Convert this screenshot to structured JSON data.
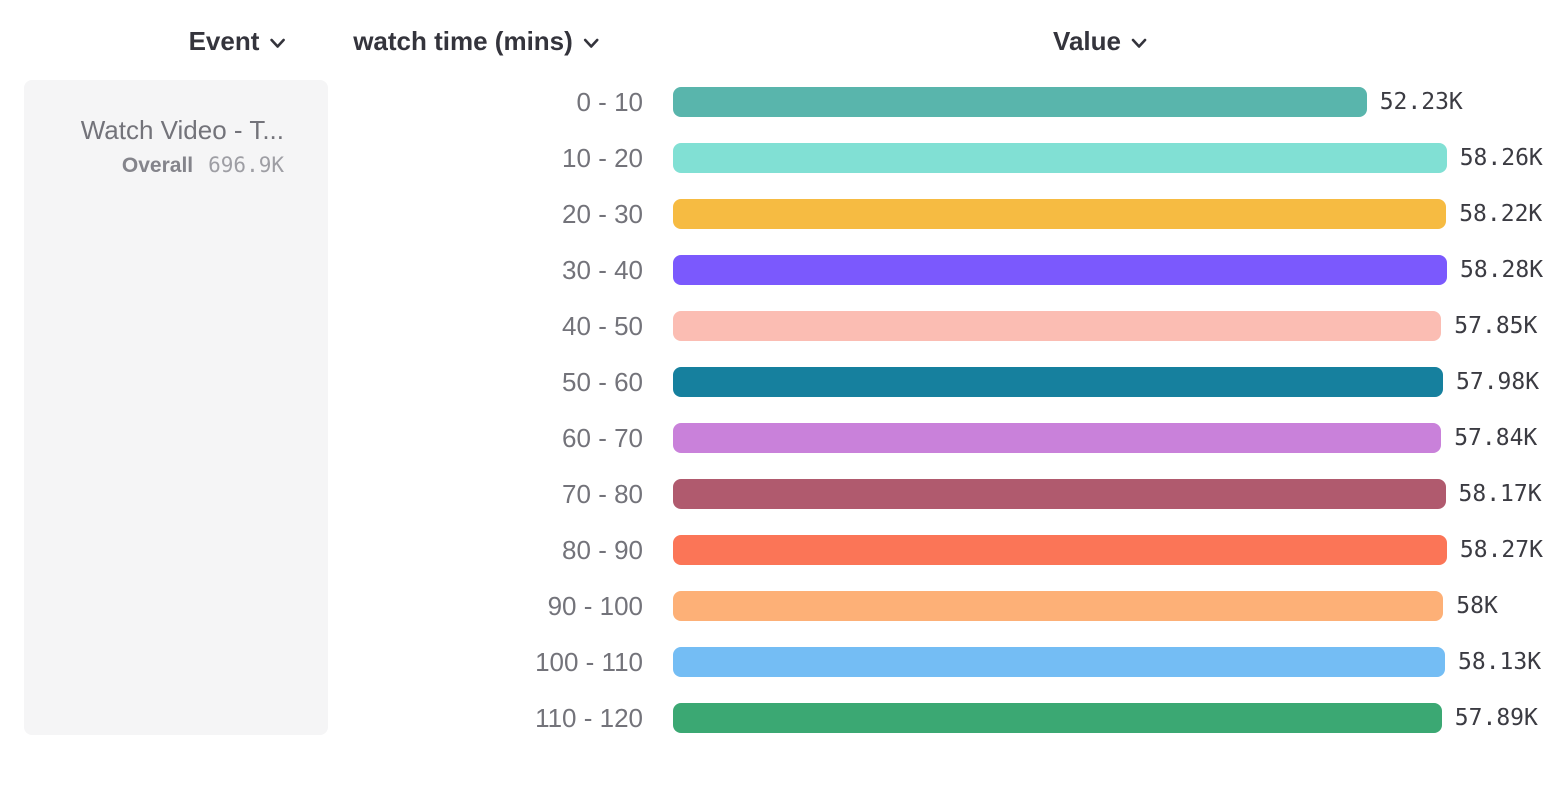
{
  "header": {
    "columns": [
      {
        "id": "event",
        "label": "Event"
      },
      {
        "id": "breakdown",
        "label": "watch time (mins)"
      },
      {
        "id": "value",
        "label": "Value"
      }
    ]
  },
  "event_card": {
    "title": "Watch Video - T...",
    "overall_label": "Overall",
    "overall_value": "696.9K"
  },
  "icons": {
    "dropdown": "chevron-down-icon"
  },
  "chart_data": {
    "type": "bar",
    "orientation": "horizontal",
    "title": "",
    "xlabel": "Value",
    "ylabel": "watch time (mins)",
    "xlim": [
      0,
      58280
    ],
    "grid": false,
    "categories": [
      "0 - 10",
      "10 - 20",
      "20 - 30",
      "30 - 40",
      "40 - 50",
      "50 - 60",
      "60 - 70",
      "70 - 80",
      "80 - 90",
      "90 - 100",
      "100 - 110",
      "110 - 120"
    ],
    "values": [
      52230,
      58260,
      58220,
      58280,
      57850,
      57980,
      57840,
      58170,
      58270,
      58000,
      58130,
      57890
    ],
    "value_labels": [
      "52.23K",
      "58.26K",
      "58.22K",
      "58.28K",
      "57.85K",
      "57.98K",
      "57.84K",
      "58.17K",
      "58.27K",
      "58K",
      "58.13K",
      "57.89K"
    ],
    "colors": [
      "#59b5ac",
      "#81e0d4",
      "#f6bb42",
      "#7b59fd",
      "#fbbdb3",
      "#16809e",
      "#c981da",
      "#b05a6e",
      "#fb7557",
      "#fdb077",
      "#74bdf4",
      "#3ba873"
    ]
  }
}
